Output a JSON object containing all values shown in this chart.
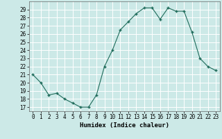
{
  "x": [
    0,
    1,
    2,
    3,
    4,
    5,
    6,
    7,
    8,
    9,
    10,
    11,
    12,
    13,
    14,
    15,
    16,
    17,
    18,
    19,
    20,
    21,
    22,
    23
  ],
  "y": [
    21,
    20,
    18.5,
    18.7,
    18,
    17.5,
    17,
    17,
    18.5,
    22,
    24,
    26.5,
    27.5,
    28.5,
    29.2,
    29.2,
    27.8,
    29.2,
    28.8,
    28.8,
    26.2,
    23,
    22,
    21.5
  ],
  "xlabel": "Humidex (Indice chaleur)",
  "xlim": [
    -0.5,
    23.5
  ],
  "ylim": [
    16.5,
    30
  ],
  "yticks": [
    17,
    18,
    19,
    20,
    21,
    22,
    23,
    24,
    25,
    26,
    27,
    28,
    29
  ],
  "xticks": [
    0,
    1,
    2,
    3,
    4,
    5,
    6,
    7,
    8,
    9,
    10,
    11,
    12,
    13,
    14,
    15,
    16,
    17,
    18,
    19,
    20,
    21,
    22,
    23
  ],
  "line_color": "#1e6b5a",
  "marker_color": "#1e6b5a",
  "bg_color": "#cce9e7",
  "grid_color": "#ffffff",
  "label_fontsize": 6.5,
  "tick_fontsize": 5.5
}
